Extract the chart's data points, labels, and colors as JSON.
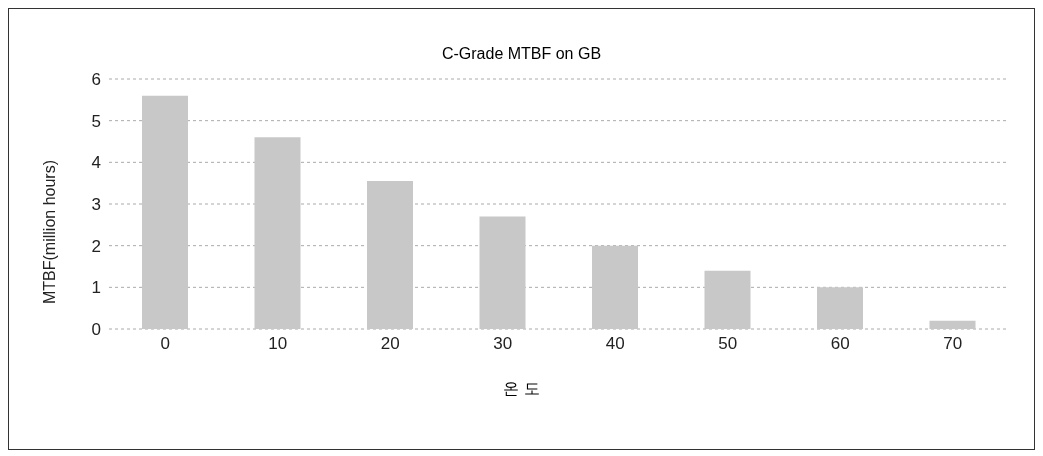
{
  "chart_data": {
    "type": "bar",
    "title": "C-Grade MTBF on GB",
    "xlabel": "온 도",
    "ylabel": "MTBF(million hours)",
    "categories": [
      "0",
      "10",
      "20",
      "30",
      "40",
      "50",
      "60",
      "70"
    ],
    "values": [
      5.6,
      4.6,
      3.55,
      2.7,
      2.0,
      1.4,
      1.0,
      0.2
    ],
    "color": "#c8c8c8",
    "ylim": [
      0,
      6
    ],
    "yticks": [
      0,
      1,
      2,
      3,
      4,
      5,
      6
    ],
    "grid": "y"
  }
}
